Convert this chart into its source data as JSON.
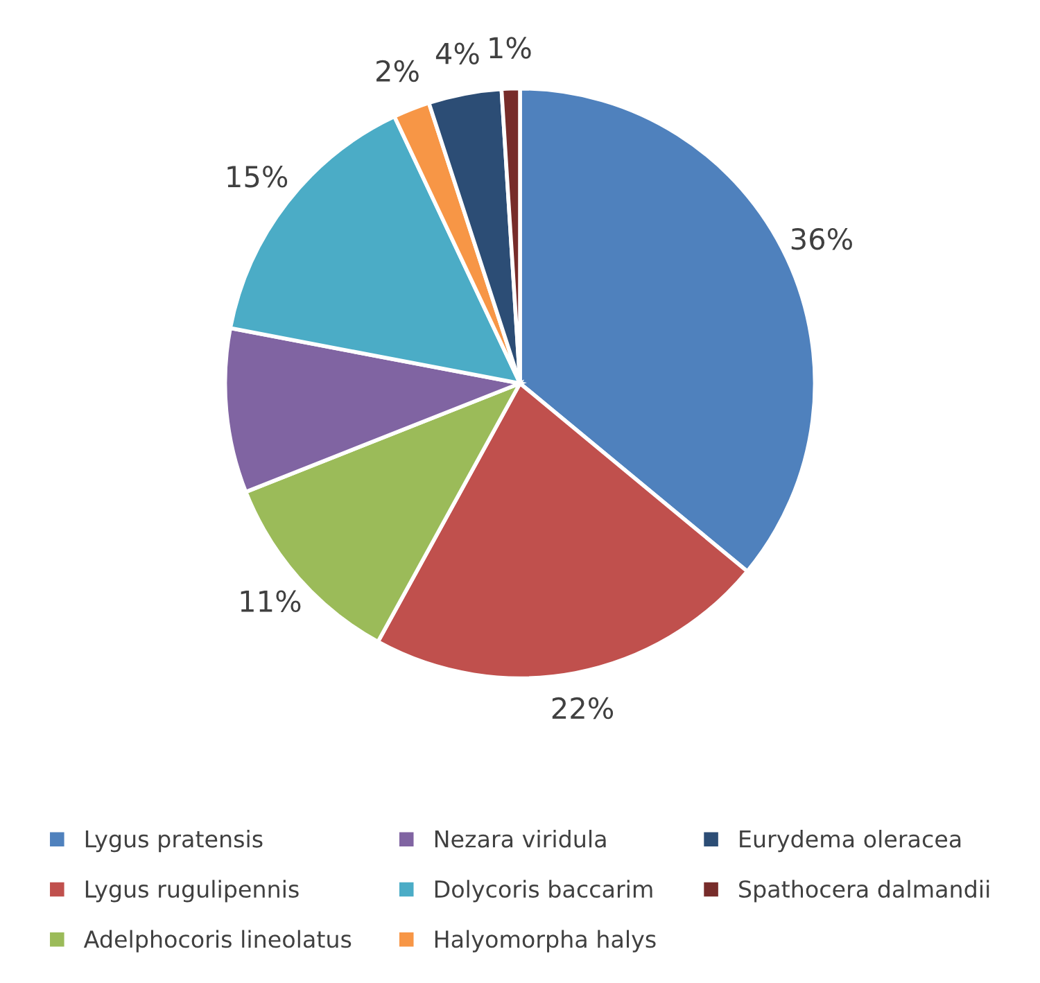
{
  "chart_data": {
    "type": "pie",
    "categories": [
      "Lygus pratensis",
      "Lygus rugulipennis",
      "Adelphocoris lineolatus",
      "Nezara viridula",
      "Dolycoris baccarim",
      "Halyomorpha halys",
      "Eurydema oleracea",
      "Spathocera dalmandii"
    ],
    "values": [
      36,
      22,
      11,
      9,
      15,
      2,
      4,
      1
    ],
    "value_labels": [
      "36%",
      "22%",
      "11%",
      null,
      "15%",
      "2%",
      "4%",
      "1%"
    ],
    "colors": [
      "#4f81bd",
      "#c0504d",
      "#9bbb59",
      "#8064a2",
      "#4bacc6",
      "#f79646",
      "#2c4d75",
      "#772c2a"
    ],
    "legend": "bottom"
  }
}
